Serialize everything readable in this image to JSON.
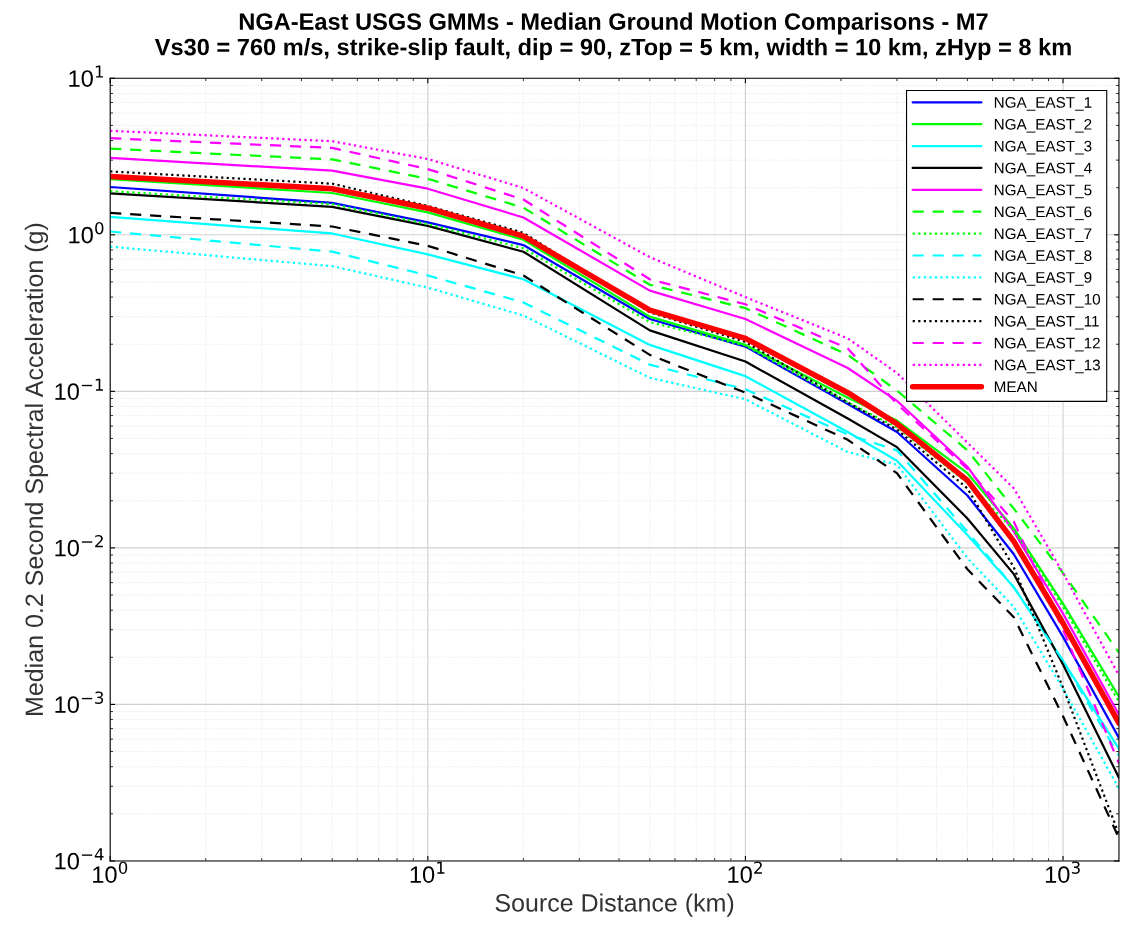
{
  "chart_data": {
    "type": "line",
    "title": "NGA-East USGS GMMs - Median Ground Motion Comparisons - M7",
    "subtitle": "Vs30 = 760 m/s, strike-slip fault, dip = 90, zTop = 5 km, width = 10 km, zHyp = 8 km",
    "xlabel": "Source Distance (km)",
    "ylabel": "Median 0.2 Second Spectral Acceleration (g)",
    "x": [
      1,
      5,
      10,
      20,
      50,
      100,
      210,
      300,
      500,
      700,
      1000,
      1500
    ],
    "log": "xy",
    "grid": true,
    "legend": "top right",
    "marker": "none",
    "xlim": [
      1,
      1500
    ],
    "xticks": [
      {
        "value": 1,
        "label": "10$^{0}$"
      },
      {
        "value": 10,
        "label": "10$^{1}$"
      },
      {
        "value": 100,
        "label": "10$^{2}$"
      },
      {
        "value": 1000,
        "label": "10$^{3}$"
      }
    ],
    "ylim": [
      0.0001,
      10
    ],
    "yticks": [
      {
        "value": 0.0001,
        "label": "10$^{−4}$"
      },
      {
        "value": 0.001,
        "label": "10$^{−3}$"
      },
      {
        "value": 0.01,
        "label": "10$^{−2}$"
      },
      {
        "value": 0.1,
        "label": "10$^{−1}$"
      },
      {
        "value": 1,
        "label": "10$^{0}$"
      },
      {
        "value": 10,
        "label": "10$^{1}$"
      }
    ],
    "series": [
      {
        "name": "NGA_EAST_1",
        "color": "#0000ff",
        "line_style": "solid",
        "values": [
          2.02,
          1.6,
          1.2,
          0.86,
          0.29,
          0.193,
          0.083,
          0.055,
          0.0216,
          0.0091,
          0.0027,
          0.00061
        ]
      },
      {
        "name": "NGA_EAST_2",
        "color": "#00ff00",
        "line_style": "solid",
        "values": [
          2.27,
          1.85,
          1.39,
          0.93,
          0.3,
          0.198,
          0.091,
          0.065,
          0.03,
          0.0133,
          0.0044,
          0.00112
        ]
      },
      {
        "name": "NGA_EAST_3",
        "color": "#00ffff",
        "line_style": "solid",
        "values": [
          1.3,
          1.02,
          0.75,
          0.52,
          0.198,
          0.125,
          0.055,
          0.036,
          0.0121,
          0.0056,
          0.0019,
          0.00052
        ]
      },
      {
        "name": "NGA_EAST_4",
        "color": "#000000",
        "line_style": "solid",
        "values": [
          1.84,
          1.51,
          1.14,
          0.78,
          0.245,
          0.155,
          0.067,
          0.044,
          0.0154,
          0.0068,
          0.0018,
          0.00034
        ]
      },
      {
        "name": "NGA_EAST_5",
        "color": "#ff00ff",
        "line_style": "solid",
        "values": [
          3.1,
          2.57,
          1.97,
          1.29,
          0.44,
          0.29,
          0.141,
          0.087,
          0.033,
          0.0127,
          0.0038,
          0.00086
        ]
      },
      {
        "name": "NGA_EAST_6",
        "color": "#00ff00",
        "line_style": "dashed",
        "values": [
          3.55,
          3.03,
          2.28,
          1.49,
          0.48,
          0.34,
          0.171,
          0.101,
          0.042,
          0.0178,
          0.0069,
          0.00214
        ]
      },
      {
        "name": "NGA_EAST_7",
        "color": "#00ff00",
        "line_style": "dotted",
        "values": [
          1.9,
          1.57,
          1.17,
          0.82,
          0.277,
          0.196,
          0.085,
          0.059,
          0.026,
          0.013,
          0.0042,
          0.00104
        ]
      },
      {
        "name": "NGA_EAST_8",
        "color": "#00ffff",
        "line_style": "dashed",
        "values": [
          1.05,
          0.78,
          0.55,
          0.37,
          0.148,
          0.103,
          0.053,
          0.042,
          0.0127,
          0.0056,
          0.0019,
          0.00047
        ]
      },
      {
        "name": "NGA_EAST_9",
        "color": "#00ffff",
        "line_style": "dotted",
        "values": [
          0.84,
          0.63,
          0.46,
          0.305,
          0.122,
          0.089,
          0.041,
          0.034,
          0.0086,
          0.0042,
          0.00126,
          0.00029
        ]
      },
      {
        "name": "NGA_EAST_10",
        "color": "#000000",
        "line_style": "dashed",
        "values": [
          1.38,
          1.13,
          0.85,
          0.55,
          0.171,
          0.098,
          0.049,
          0.03,
          0.0073,
          0.0036,
          0.00084,
          0.00014
        ]
      },
      {
        "name": "NGA_EAST_11",
        "color": "#000000",
        "line_style": "dotted",
        "values": [
          2.54,
          2.12,
          1.53,
          1.03,
          0.32,
          0.207,
          0.085,
          0.057,
          0.024,
          0.0075,
          0.00128,
          0.000148
        ]
      },
      {
        "name": "NGA_EAST_12",
        "color": "#ff00ff",
        "line_style": "dashed",
        "values": [
          4.14,
          3.59,
          2.63,
          1.68,
          0.52,
          0.36,
          0.188,
          0.083,
          0.032,
          0.0147,
          0.003,
          0.00042
        ]
      },
      {
        "name": "NGA_EAST_13",
        "color": "#ff00ff",
        "line_style": "dotted",
        "values": [
          4.62,
          3.96,
          3.05,
          1.99,
          0.72,
          0.4,
          0.218,
          0.131,
          0.047,
          0.024,
          0.0069,
          0.00153
        ]
      },
      {
        "name": "MEAN",
        "color": "#ff0000",
        "line_style": "solid",
        "values": [
          2.36,
          1.97,
          1.48,
          0.98,
          0.33,
          0.218,
          0.098,
          0.062,
          0.027,
          0.011,
          0.0033,
          0.00076
        ]
      }
    ]
  }
}
